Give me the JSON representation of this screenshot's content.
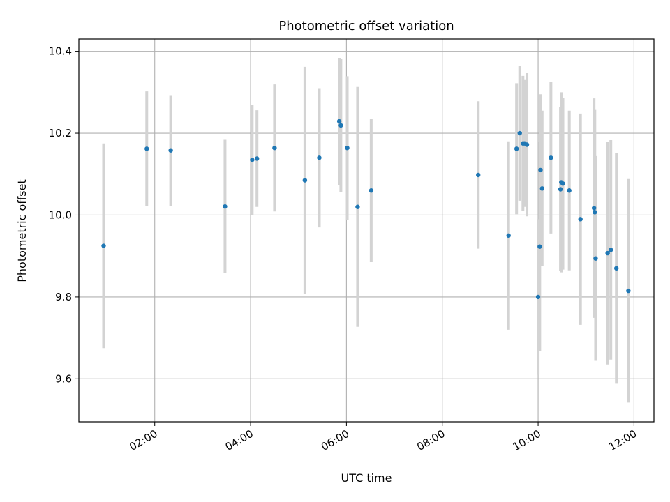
{
  "chart_data": {
    "type": "scatter",
    "title": "Photometric offset variation",
    "xlabel": "UTC time",
    "ylabel": "Photometric offset",
    "xlim": [
      "00:25",
      "12:25"
    ],
    "ylim": [
      9.495,
      10.43
    ],
    "x_ticks": [
      "02:00",
      "04:00",
      "06:00",
      "08:00",
      "10:00",
      "12:00"
    ],
    "y_ticks": [
      "9.6",
      "9.8",
      "10.0",
      "10.2",
      "10.4"
    ],
    "grid": true,
    "legend": "none",
    "point_color": "#1f77b4",
    "errorbar_color": "#d3d3d3",
    "points": [
      {
        "x": "00:56",
        "y": 9.925,
        "yerr": 0.25
      },
      {
        "x": "01:50",
        "y": 10.162,
        "yerr": 0.14
      },
      {
        "x": "02:20",
        "y": 10.158,
        "yerr": 0.135
      },
      {
        "x": "03:28",
        "y": 10.021,
        "yerr": 0.163
      },
      {
        "x": "04:02",
        "y": 10.135,
        "yerr": 0.135
      },
      {
        "x": "04:08",
        "y": 10.138,
        "yerr": 0.118
      },
      {
        "x": "04:30",
        "y": 10.164,
        "yerr": 0.155
      },
      {
        "x": "05:08",
        "y": 10.085,
        "yerr": 0.277
      },
      {
        "x": "05:26",
        "y": 10.14,
        "yerr": 0.17
      },
      {
        "x": "05:51",
        "y": 10.229,
        "yerr": 0.155
      },
      {
        "x": "05:53",
        "y": 10.219,
        "yerr": 0.163
      },
      {
        "x": "06:01",
        "y": 10.164,
        "yerr": 0.175
      },
      {
        "x": "06:14",
        "y": 10.02,
        "yerr": 0.293
      },
      {
        "x": "06:31",
        "y": 10.06,
        "yerr": 0.175
      },
      {
        "x": "08:45",
        "y": 10.098,
        "yerr": 0.18
      },
      {
        "x": "09:23",
        "y": 9.95,
        "yerr": 0.23
      },
      {
        "x": "09:33",
        "y": 10.162,
        "yerr": 0.16
      },
      {
        "x": "09:37",
        "y": 10.2,
        "yerr": 0.165
      },
      {
        "x": "09:41",
        "y": 10.175,
        "yerr": 0.165
      },
      {
        "x": "09:43",
        "y": 10.175,
        "yerr": 0.155
      },
      {
        "x": "09:46",
        "y": 10.172,
        "yerr": 0.175
      },
      {
        "x": "10:00",
        "y": 9.8,
        "yerr": 0.19
      },
      {
        "x": "10:02",
        "y": 9.923,
        "yerr": 0.255
      },
      {
        "x": "10:03",
        "y": 10.11,
        "yerr": 0.185
      },
      {
        "x": "10:05",
        "y": 10.065,
        "yerr": 0.19
      },
      {
        "x": "10:16",
        "y": 10.14,
        "yerr": 0.185
      },
      {
        "x": "10:28",
        "y": 10.063,
        "yerr": 0.2
      },
      {
        "x": "10:29",
        "y": 10.08,
        "yerr": 0.22
      },
      {
        "x": "10:31",
        "y": 10.077,
        "yerr": 0.21
      },
      {
        "x": "10:39",
        "y": 10.06,
        "yerr": 0.195
      },
      {
        "x": "10:53",
        "y": 9.99,
        "yerr": 0.258
      },
      {
        "x": "11:10",
        "y": 10.017,
        "yerr": 0.268
      },
      {
        "x": "11:11",
        "y": 10.007,
        "yerr": 0.25
      },
      {
        "x": "11:12",
        "y": 9.894,
        "yerr": 0.25
      },
      {
        "x": "11:27",
        "y": 9.907,
        "yerr": 0.272
      },
      {
        "x": "11:31",
        "y": 9.915,
        "yerr": 0.268
      },
      {
        "x": "11:38",
        "y": 9.87,
        "yerr": 0.282
      },
      {
        "x": "11:53",
        "y": 9.815,
        "yerr": 0.273
      }
    ]
  }
}
